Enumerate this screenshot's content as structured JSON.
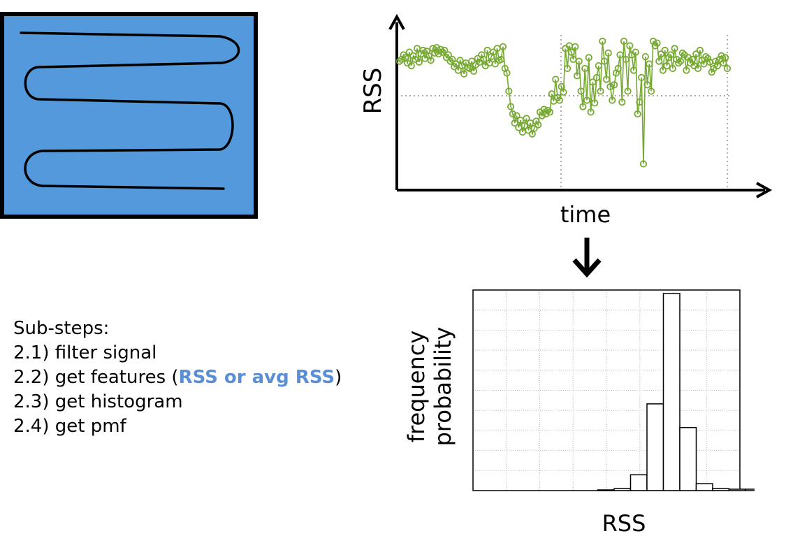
{
  "colors": {
    "room_fill": "#5599dd",
    "room_border": "#000000",
    "signal": "#77aa33",
    "highlight": "#5a8fd6",
    "histogram_bar": "#000000",
    "grid": "#bbbbbb"
  },
  "timeseries": {
    "ylabel": "RSS",
    "xlabel": "time"
  },
  "histogram": {
    "ylabel_line1": "frequency",
    "ylabel_line2": "probability",
    "xlabel": "RSS"
  },
  "substeps": {
    "heading": "Sub-steps:",
    "step1": "2.1) filter signal",
    "step2_prefix": "2.2) get features (",
    "step2_highlight": "RSS or avg RSS",
    "step2_suffix": ")",
    "step3": "2.3) get histogram",
    "step4": "2.4) get pmf"
  },
  "chart_data": [
    {
      "type": "line",
      "xlabel": "time",
      "ylabel": "RSS",
      "grid": true,
      "values": [
        0.38,
        0.4,
        0.45,
        0.42,
        0.36,
        0.48,
        0.33,
        0.44,
        0.4,
        0.52,
        0.37,
        0.46,
        0.5,
        0.41,
        0.49,
        0.44,
        0.39,
        0.52,
        0.47,
        0.53,
        0.46,
        0.51,
        0.48,
        0.5,
        0.42,
        0.45,
        0.38,
        0.4,
        0.32,
        0.35,
        0.28,
        0.39,
        0.33,
        0.24,
        0.36,
        0.31,
        0.3,
        0.38,
        0.27,
        0.34,
        0.41,
        0.37,
        0.45,
        0.4,
        0.33,
        0.5,
        0.36,
        0.43,
        0.48,
        0.35,
        0.52,
        0.39,
        0.4,
        0.54,
        0.3,
        0.25,
        0.05,
        -0.12,
        -0.2,
        -0.3,
        -0.22,
        -0.35,
        -0.27,
        -0.4,
        -0.33,
        -0.25,
        -0.38,
        -0.3,
        -0.42,
        -0.36,
        -0.28,
        -0.32,
        -0.18,
        -0.22,
        -0.15,
        -0.2,
        -0.16,
        -0.18,
        0.02,
        -0.06,
        0.18,
        -0.02,
        -0.05,
        0.1,
        0.04,
        0.52,
        0.3,
        0.55,
        0.48,
        0.4,
        0.54,
        0.22,
        0.38,
        0.05,
        -0.12,
        0.3,
        -0.05,
        0.42,
        -0.18,
        0.15,
        -0.08,
        0.2,
        0.33,
        0.05,
        0.6,
        0.38,
        0.18,
        0.47,
        0.1,
        -0.05,
        0.12,
        0.25,
        0.3,
        0.45,
        -0.07,
        0.6,
        0.4,
        0.05,
        0.55,
        0.45,
        0.28,
        0.48,
        -0.2,
        -0.07,
        0.2,
        -0.75,
        0.43,
        0.12,
        0.35,
        0.05,
        0.6,
        0.55,
        0.58,
        0.38,
        0.46,
        0.28,
        0.5,
        0.33,
        0.42,
        0.45,
        0.3,
        0.52,
        0.4,
        0.36,
        0.38,
        0.47,
        0.45,
        0.28,
        0.42,
        0.36,
        0.4,
        0.33,
        0.46,
        0.3,
        0.5,
        0.39,
        0.35,
        0.43,
        0.41,
        0.37,
        0.26,
        0.3,
        0.38,
        0.33,
        0.4,
        0.44,
        0.36,
        0.42,
        0.3
      ]
    },
    {
      "type": "bar",
      "xlabel": "RSS",
      "ylabel": "frequency probability",
      "grid": true,
      "ylim": [
        0,
        1
      ],
      "values": [
        0,
        0,
        0,
        0,
        0,
        0,
        0.002,
        0.01,
        0.08,
        0.44,
        1.0,
        0.32,
        0.035,
        0.01,
        0.007,
        0.007,
        0.001
      ]
    }
  ]
}
